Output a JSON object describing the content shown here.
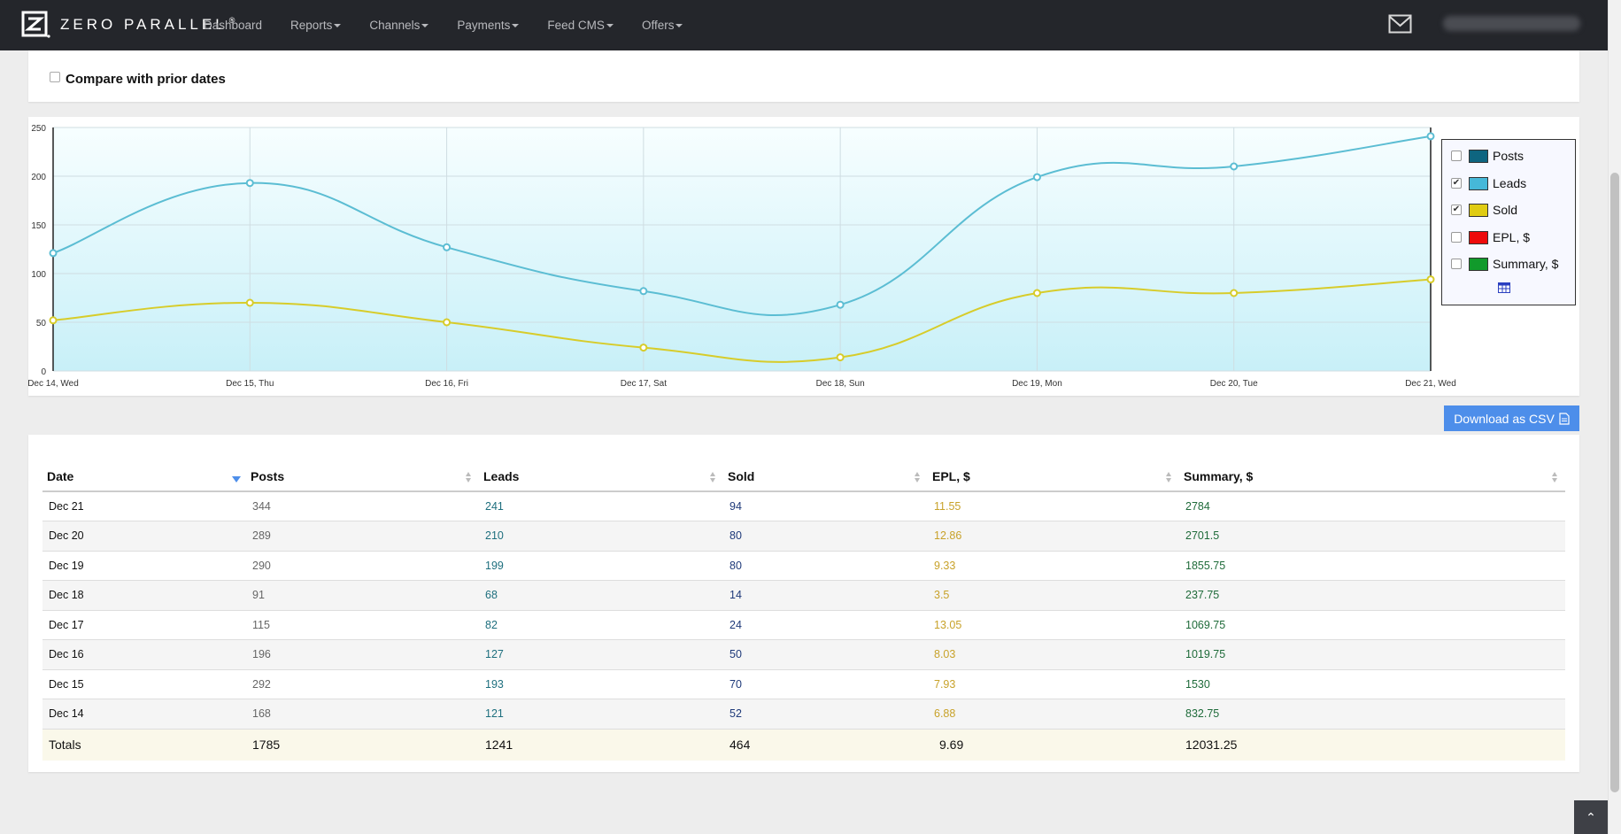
{
  "navbar": {
    "brand": "ZERO PARALLEL",
    "brand_mark": "®",
    "items": [
      {
        "label": "Dashboard",
        "dropdown": false
      },
      {
        "label": "Reports",
        "dropdown": true
      },
      {
        "label": "Channels",
        "dropdown": true
      },
      {
        "label": "Payments",
        "dropdown": true
      },
      {
        "label": "Feed CMS",
        "dropdown": true
      },
      {
        "label": "Offers",
        "dropdown": true
      }
    ],
    "icons": [
      "mail-icon"
    ]
  },
  "compare": {
    "label": "Compare with prior dates",
    "checked": false
  },
  "legend": {
    "items": [
      {
        "label": "Posts",
        "color": "#0e6580",
        "checked": false
      },
      {
        "label": "Leads",
        "color": "#46b8d8",
        "checked": true
      },
      {
        "label": "Sold",
        "color": "#e0cc12",
        "checked": true
      },
      {
        "label": "EPL, $",
        "color": "#ee0b0b",
        "checked": false
      },
      {
        "label": "Summary, $",
        "color": "#119a2b",
        "checked": false
      }
    ]
  },
  "chart_data": {
    "type": "line",
    "categories": [
      "Dec 14, Wed",
      "Dec 15, Thu",
      "Dec 16, Fri",
      "Dec 17, Sat",
      "Dec 18, Sun",
      "Dec 19, Mon",
      "Dec 20, Tue",
      "Dec 21, Wed"
    ],
    "series": [
      {
        "name": "Leads",
        "color": "#5bbdd3",
        "values": [
          121,
          193,
          127,
          82,
          68,
          199,
          210,
          241
        ]
      },
      {
        "name": "Sold",
        "color": "#d7cc2a",
        "values": [
          52,
          70,
          50,
          24,
          14,
          80,
          80,
          94
        ]
      }
    ],
    "ylim": [
      0,
      250
    ],
    "yticks": [
      "0",
      "50",
      "100",
      "150",
      "200",
      "250"
    ],
    "grid": true,
    "legend_position": "right"
  },
  "csv_button": {
    "label": "Download as CSV"
  },
  "table": {
    "headers": [
      "Date",
      "Posts",
      "Leads",
      "Sold",
      "EPL, $",
      "Summary, $"
    ],
    "sorted_column": 0,
    "rows": [
      [
        "Dec 21",
        "344",
        "241",
        "94",
        "11.55",
        "2784"
      ],
      [
        "Dec 20",
        "289",
        "210",
        "80",
        "12.86",
        "2701.5"
      ],
      [
        "Dec 19",
        "290",
        "199",
        "80",
        "9.33",
        "1855.75"
      ],
      [
        "Dec 18",
        "91",
        "68",
        "14",
        "3.5",
        "237.75"
      ],
      [
        "Dec 17",
        "115",
        "82",
        "24",
        "13.05",
        "1069.75"
      ],
      [
        "Dec 16",
        "196",
        "127",
        "50",
        "8.03",
        "1019.75"
      ],
      [
        "Dec 15",
        "292",
        "193",
        "70",
        "7.93",
        "1530"
      ],
      [
        "Dec 14",
        "168",
        "121",
        "52",
        "6.88",
        "832.75"
      ]
    ],
    "totals": [
      "Totals",
      "1785",
      "1241",
      "464",
      "9.69",
      "12031.25"
    ]
  }
}
